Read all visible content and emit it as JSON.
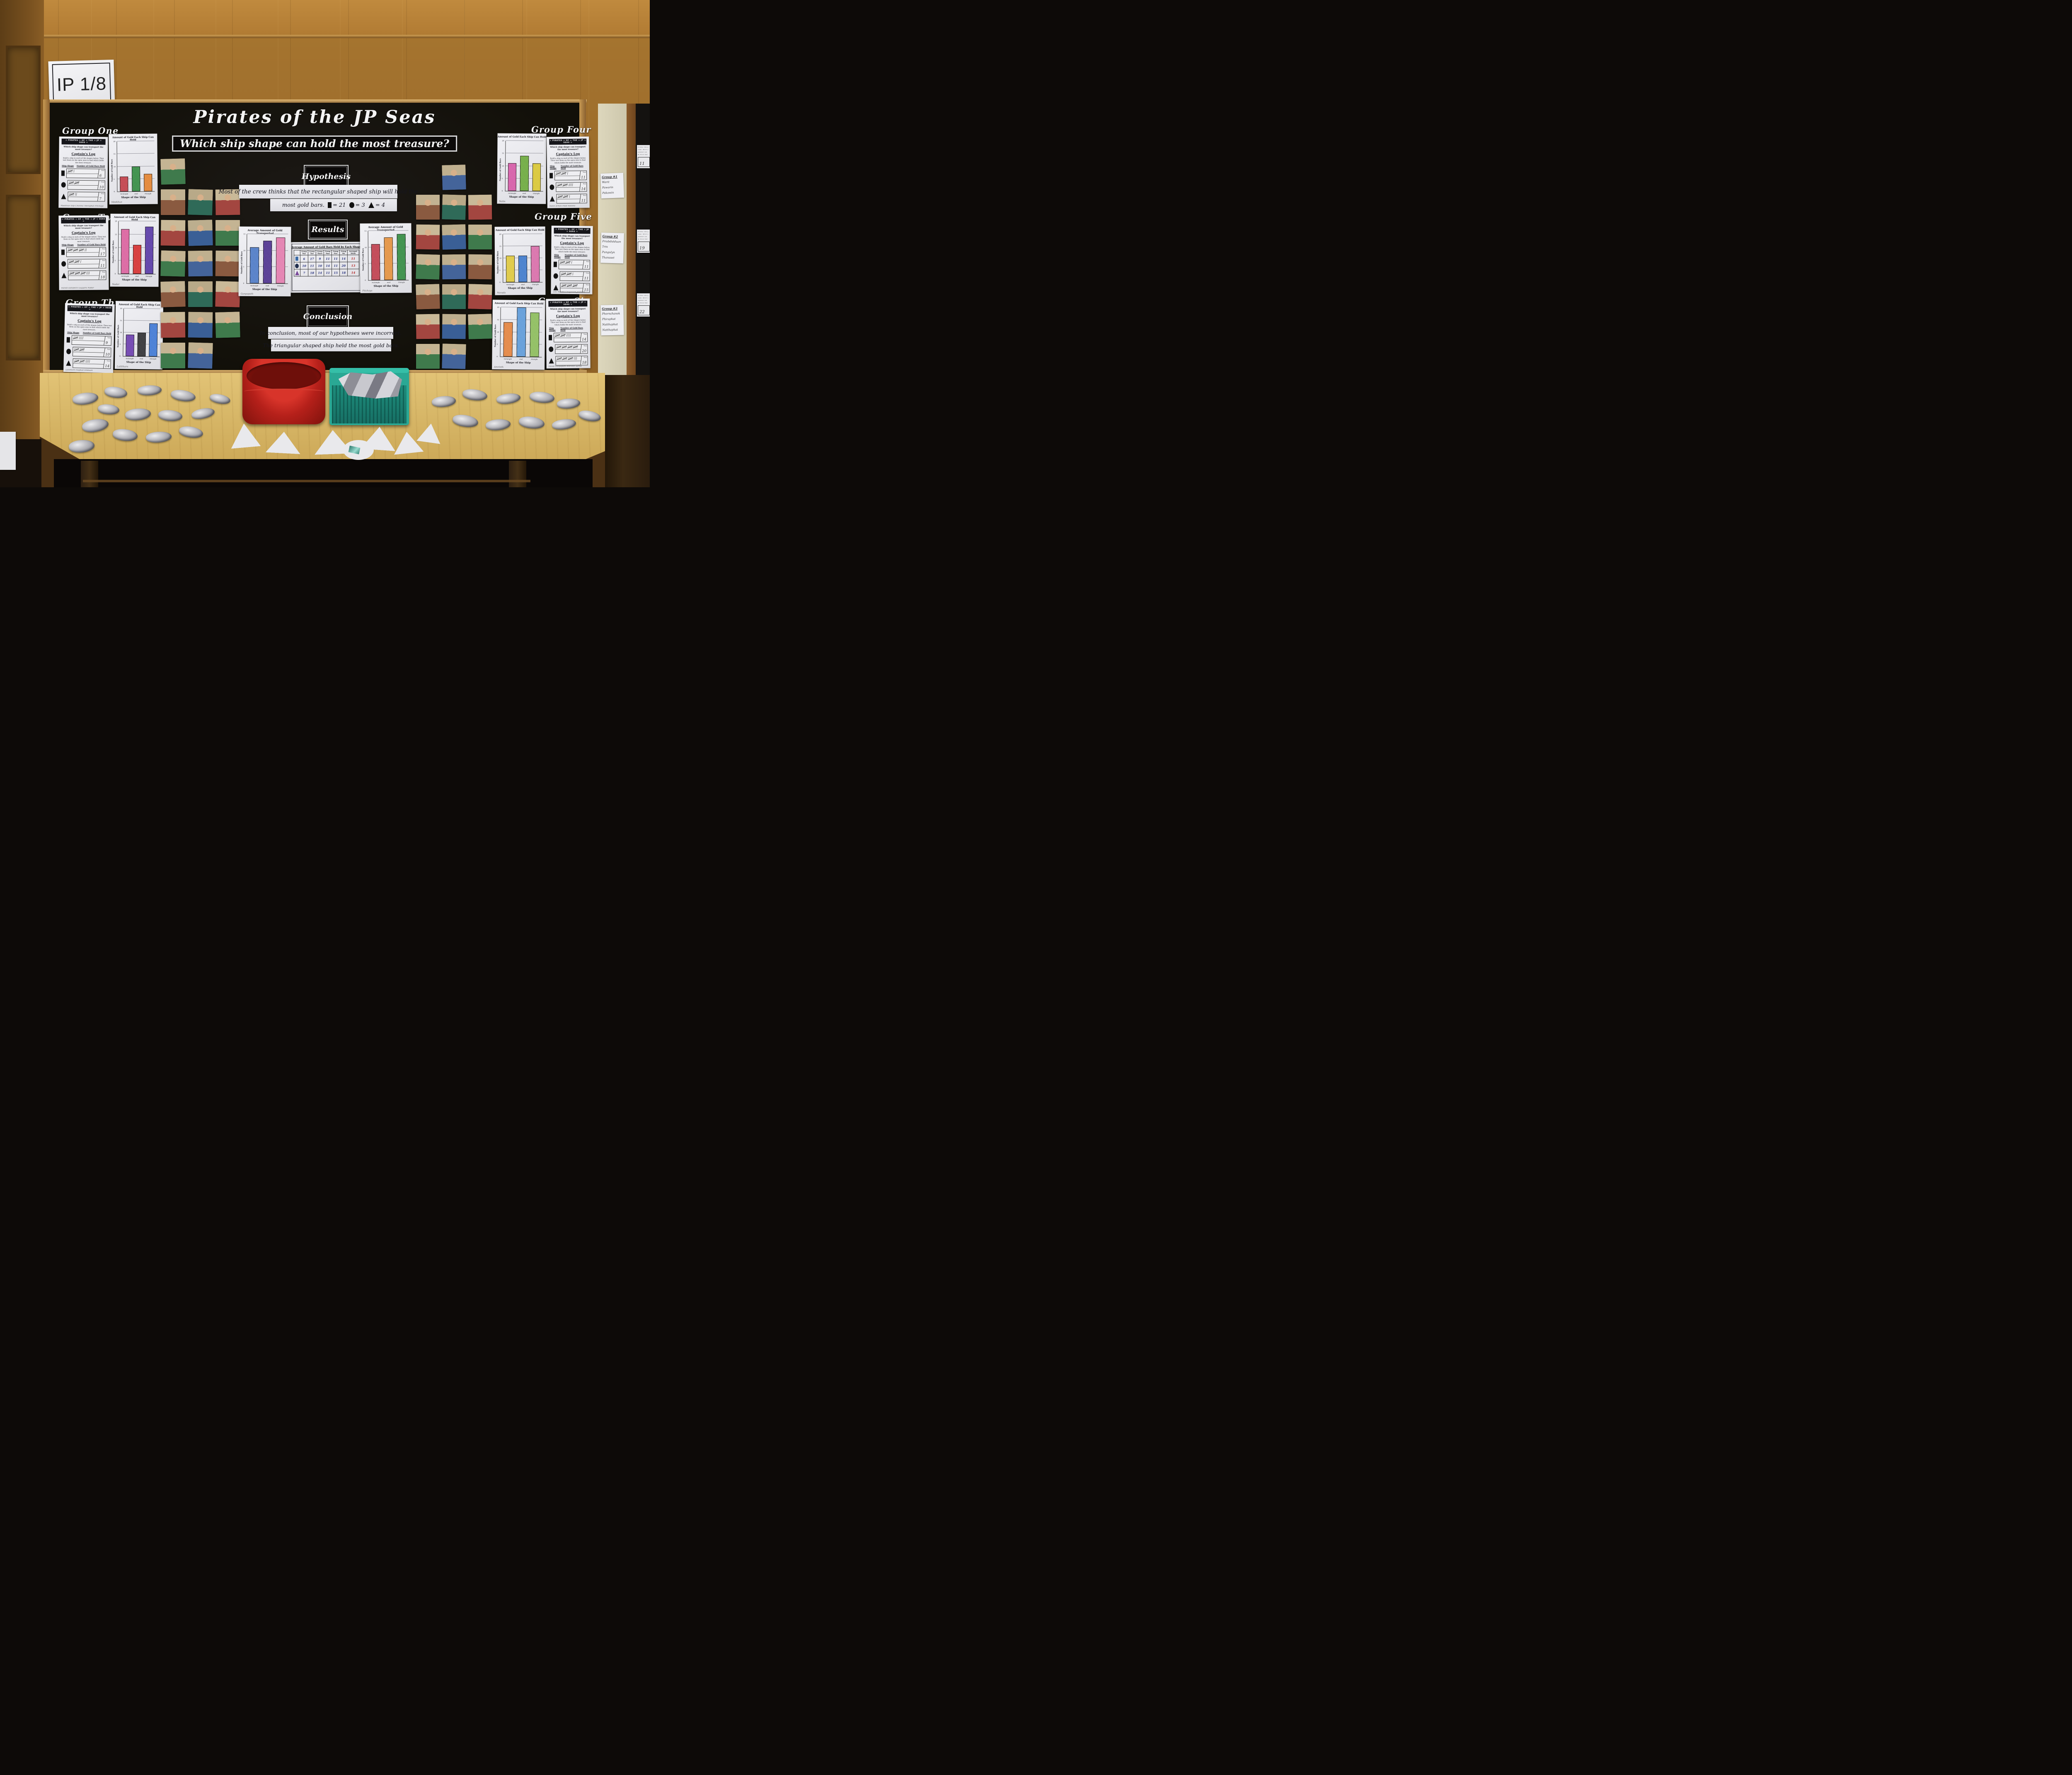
{
  "sign": {
    "text": "IP 1/8"
  },
  "board": {
    "title": "Pirates of the JP Seas",
    "subtitle": "Which ship shape can hold the most treasure?",
    "hypothesis": {
      "heading": "Hypothesis",
      "line1": "Most of the crew thinks that the rectangular shaped ship will hold the",
      "line2": "most gold bars.",
      "legend": [
        {
          "shape": "rectangle",
          "value": "= 21"
        },
        {
          "shape": "oval",
          "value": "= 3"
        },
        {
          "shape": "triangle",
          "value": "= 4"
        }
      ]
    },
    "results": {
      "heading": "Results"
    },
    "conclusion": {
      "heading": "Conclusion",
      "line1": "In conclusion, most of our hypotheses were incorrect.",
      "line2": "The triangular shaped ship held the most gold bars."
    }
  },
  "worksheet": {
    "banner": "☠ PIRATES ☠ OF ☠ THE ☠ JP ☠ SEAS ☠",
    "question": "Which ship shape can transport the most treasure?",
    "log_title": "Captain's Log",
    "instructions": "Build a ship in each of the shapes below. Then test them on the open seas to find which holds the most treasure.",
    "shape_col": "Ship Shape",
    "bars_col": "Number of Gold Bars Held",
    "total_label": "Total"
  },
  "group_chart": {
    "title": "Amount of Gold Each Ship Can Hold",
    "xlabel": "Shape of the Ship",
    "ylabel": "Number of Gold Bars",
    "categories": [
      "rectangle",
      "oval",
      "triangle"
    ],
    "ymax": 20,
    "ticks": [
      0,
      5,
      10,
      15,
      20
    ]
  },
  "groups": [
    {
      "label": "Group One",
      "worksheet": {
        "totals": [
          6,
          10,
          7
        ],
        "names": "Meekhun   Silp   Chavina   Teeraphat   Pitchaya"
      },
      "chart": {
        "values": [
          6,
          10,
          7
        ],
        "colors": [
          "#c43a44",
          "#2e8b3d",
          "#e8822a"
        ],
        "name": "Meekhun"
      }
    },
    {
      "label": "Group Two",
      "worksheet": {
        "totals": [
          17,
          11,
          18
        ],
        "names": "Patrah   Kittipitch   Guyyara   Nadar"
      },
      "chart": {
        "values": [
          17,
          11,
          18
        ],
        "colors": [
          "#df5f9f",
          "#d92b2b",
          "#5636a8"
        ],
        "name": "Nadar"
      }
    },
    {
      "label": "Group Three",
      "worksheet": {
        "totals": [
          9,
          10,
          14
        ],
        "names": "Lalilthorn   Naphat   Ombuan"
      },
      "chart": {
        "values": [
          9,
          10,
          14
        ],
        "colors": [
          "#6a3ab0",
          "#2b2b2e",
          "#3b77d8"
        ],
        "name": "Lalilthorn"
      }
    },
    {
      "label": "Group Four",
      "worksheet": {
        "totals": [
          11,
          14,
          11
        ],
        "names": "Nalin   Arnon   Palat   Ratana"
      },
      "chart": {
        "values": [
          11,
          14,
          11
        ],
        "colors": [
          "#d957a8",
          "#6aab38",
          "#ddc92e"
        ],
        "name": "Nalin"
      }
    },
    {
      "label": "Group Five",
      "worksheet": {
        "totals": [
          11,
          11,
          15
        ],
        "names": "Lita   Nalada   Chayacorn   Jirakorn"
      },
      "chart": {
        "values": [
          11,
          11,
          15
        ],
        "colors": [
          "#e3cb3a",
          "#3b79cf",
          "#dd6cab"
        ],
        "name": "Narada"
      }
    },
    {
      "label": "Group Six",
      "worksheet": {
        "totals": [
          14,
          20,
          18
        ],
        "names": "David   Ganpapath   Amrinth   Sarita"
      },
      "chart": {
        "values": [
          14,
          20,
          18
        ],
        "colors": [
          "#e8833b",
          "#5b9bdd",
          "#8cbf58"
        ],
        "name": "Amrinth"
      }
    }
  ],
  "avg_charts": {
    "title": "Average Amount of Gold Transported",
    "xlabel": "Shape of the Ship",
    "ylabel": "Number of Gold Bars",
    "categories": [
      "rectangle",
      "oval",
      "triangle"
    ],
    "ymax": 15,
    "ticks": [
      0,
      5,
      10,
      15
    ],
    "left": {
      "values": [
        11,
        13,
        14
      ],
      "colors": [
        "#4a79c9",
        "#4b2d8f",
        "#e87bb0"
      ],
      "name": "Ganpapath"
    },
    "right": {
      "values": [
        11,
        13,
        14
      ],
      "colors": [
        "#c23a4a",
        "#e8913a",
        "#2e8b3d"
      ],
      "name": "Pitchaya"
    }
  },
  "results_table": {
    "title": "Average Amount of Gold Bars Held by Each Shape",
    "columns": [
      "Group One",
      "Group Two",
      "Group Three",
      "Group Four",
      "Group Five",
      "Group Six",
      "Averaged Totals"
    ],
    "rows": [
      {
        "shape": "rectangle",
        "values": [
          6,
          17,
          9,
          11,
          11,
          14
        ],
        "average": 11
      },
      {
        "shape": "oval",
        "values": [
          10,
          11,
          10,
          14,
          11,
          20
        ],
        "average": 13
      },
      {
        "shape": "triangle",
        "values": [
          7,
          18,
          14,
          11,
          15,
          18
        ],
        "average": 14
      }
    ]
  },
  "side_board": {
    "cards": [
      {
        "title": "Group #1",
        "names": [
          "Warit",
          "Pawarin",
          "Pakawin"
        ]
      },
      {
        "title": "Group #2",
        "names": [
          "Priabdutduan",
          "Trin",
          "Pungulyn",
          "Thanaset"
        ]
      },
      {
        "title": "Group #3",
        "names": [
          "Phornchanok",
          "Phiraphat",
          "Natthaphat",
          "Natthaphat"
        ]
      }
    ],
    "snippet": [
      "Pirates like g",
      "ocean. Which s",
      "greatest num",
      "We think that"
    ],
    "sheets": [
      {
        "value": "11"
      },
      {
        "value": "19"
      },
      {
        "value": "22"
      }
    ]
  },
  "photos": {
    "left_count": 18,
    "right_count": 18
  },
  "objects": {
    "red_tub_color": "#b5201a",
    "teal_basket_color": "#2aa894",
    "foil_ship_color": "#a8a8ae"
  },
  "chart_data": [
    {
      "id": "group-one-chart",
      "type": "bar",
      "title": "Amount of Gold Each Ship Can Hold",
      "xlabel": "Shape of the Ship",
      "ylabel": "Number of Gold Bars",
      "categories": [
        "rectangle",
        "oval",
        "triangle"
      ],
      "values": [
        6,
        10,
        7
      ],
      "ylim": [
        0,
        20
      ]
    },
    {
      "id": "group-two-chart",
      "type": "bar",
      "title": "Amount of Gold Each Ship Can Hold",
      "xlabel": "Shape of the Ship",
      "ylabel": "Number of Gold Bars",
      "categories": [
        "rectangle",
        "oval",
        "triangle"
      ],
      "values": [
        17,
        11,
        18
      ],
      "ylim": [
        0,
        20
      ]
    },
    {
      "id": "group-three-chart",
      "type": "bar",
      "title": "Amount of Gold Each Ship Can Hold",
      "xlabel": "Shape of the Ship",
      "ylabel": "Number of Gold Bars",
      "categories": [
        "rectangle",
        "oval",
        "triangle"
      ],
      "values": [
        9,
        10,
        14
      ],
      "ylim": [
        0,
        20
      ]
    },
    {
      "id": "group-four-chart",
      "type": "bar",
      "title": "Amount of Gold Each Ship Can Hold",
      "xlabel": "Shape of the Ship",
      "ylabel": "Number of Gold Bars",
      "categories": [
        "rectangle",
        "oval",
        "triangle"
      ],
      "values": [
        11,
        14,
        11
      ],
      "ylim": [
        0,
        20
      ]
    },
    {
      "id": "group-five-chart",
      "type": "bar",
      "title": "Amount of Gold Each Ship Can Hold",
      "xlabel": "Shape of the Ship",
      "ylabel": "Number of Gold Bars",
      "categories": [
        "rectangle",
        "oval",
        "triangle"
      ],
      "values": [
        11,
        11,
        15
      ],
      "ylim": [
        0,
        20
      ]
    },
    {
      "id": "group-six-chart",
      "type": "bar",
      "title": "Amount of Gold Each Ship Can Hold",
      "xlabel": "Shape of the Ship",
      "ylabel": "Number of Gold Bars",
      "categories": [
        "rectangle",
        "oval",
        "triangle"
      ],
      "values": [
        14,
        20,
        18
      ],
      "ylim": [
        0,
        20
      ]
    },
    {
      "id": "average-chart-left",
      "type": "bar",
      "title": "Average Amount of Gold Transported",
      "xlabel": "Shape of the Ship",
      "ylabel": "Number of Gold Bars",
      "categories": [
        "rectangle",
        "oval",
        "triangle"
      ],
      "values": [
        11,
        13,
        14
      ],
      "ylim": [
        0,
        15
      ]
    },
    {
      "id": "average-chart-right",
      "type": "bar",
      "title": "Average Amount of Gold Transported",
      "xlabel": "Shape of the Ship",
      "ylabel": "Number of Gold Bars",
      "categories": [
        "rectangle",
        "oval",
        "triangle"
      ],
      "values": [
        11,
        13,
        14
      ],
      "ylim": [
        0,
        15
      ]
    },
    {
      "id": "results-table",
      "type": "table",
      "title": "Average Amount of Gold Bars Held by Each Shape",
      "columns": [
        "Group One",
        "Group Two",
        "Group Three",
        "Group Four",
        "Group Five",
        "Group Six",
        "Averaged Totals"
      ],
      "rows": [
        [
          "rectangle",
          6,
          17,
          9,
          11,
          11,
          14,
          11
        ],
        [
          "oval",
          10,
          11,
          10,
          14,
          11,
          20,
          13
        ],
        [
          "triangle",
          7,
          18,
          14,
          11,
          15,
          18,
          14
        ]
      ]
    }
  ]
}
